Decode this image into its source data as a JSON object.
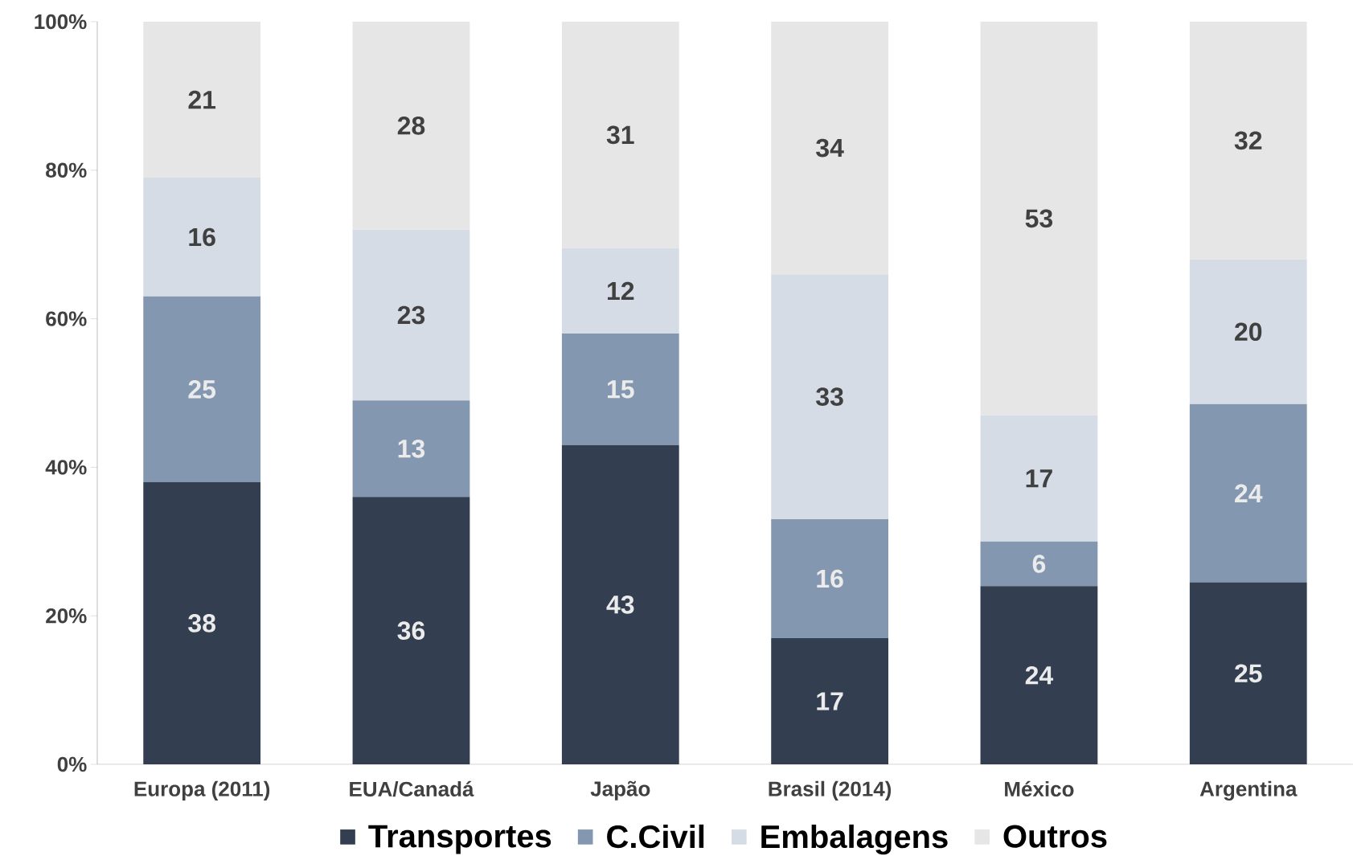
{
  "chart_data": {
    "type": "bar",
    "stacked": true,
    "categories": [
      "Europa (2011)",
      "EUA/Canadá",
      "Japão",
      "Brasil (2014)",
      "México",
      "Argentina"
    ],
    "series": [
      {
        "name": "Transportes",
        "color": "#333f50",
        "values": [
          38,
          36,
          43,
          17,
          24,
          24.5
        ],
        "value_labels": [
          "38",
          "36",
          "43",
          "17",
          "24",
          "25"
        ]
      },
      {
        "name": "C.Civil",
        "color": "#8497b0",
        "values": [
          25,
          13,
          15,
          16,
          6,
          24
        ],
        "value_labels": [
          "25",
          "13",
          "15",
          "16",
          "6",
          "24"
        ]
      },
      {
        "name": "Embalagens",
        "color": "#d6dce5",
        "values": [
          16,
          23,
          11.5,
          33,
          17,
          19.5
        ],
        "value_labels": [
          "16",
          "23",
          "12",
          "33",
          "17",
          "20"
        ]
      },
      {
        "name": "Outros",
        "color": "#e7e6e6",
        "values": [
          21,
          28,
          30.5,
          34,
          53,
          32
        ],
        "value_labels": [
          "21",
          "28",
          "31",
          "34",
          "53",
          "32"
        ]
      }
    ],
    "ylim": [
      0,
      100
    ],
    "yticks": [
      {
        "value": 0,
        "label": "0%"
      },
      {
        "value": 20,
        "label": "20%"
      },
      {
        "value": 40,
        "label": "40%"
      },
      {
        "value": 60,
        "label": "60%"
      },
      {
        "value": 80,
        "label": "80%"
      },
      {
        "value": 100,
        "label": "100%"
      }
    ],
    "legend": "bottom"
  }
}
